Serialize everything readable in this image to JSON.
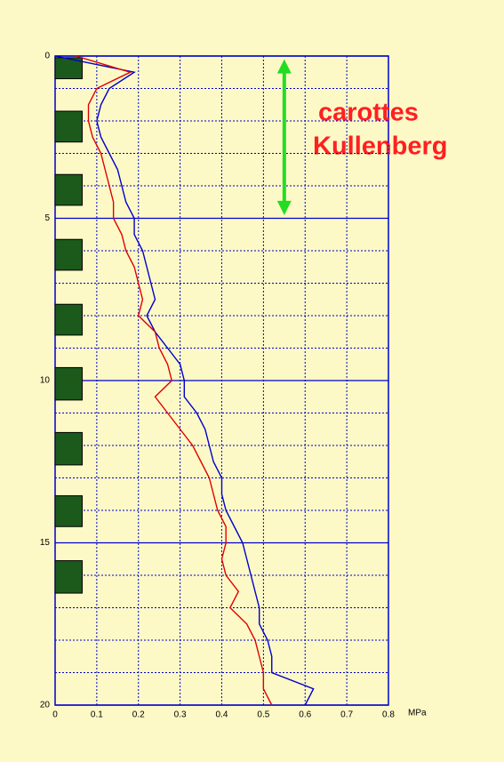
{
  "chart_data": {
    "type": "line",
    "xlim": [
      0,
      0.8
    ],
    "xticks": [
      0,
      0.1,
      0.2,
      0.3,
      0.4,
      0.5,
      0.6,
      0.7,
      0.8
    ],
    "xlabel": "MPa",
    "ylim": [
      0,
      20
    ],
    "yticks": [
      0,
      5,
      10,
      15,
      20
    ],
    "y_minor_ticks": [
      1,
      2,
      3,
      4,
      6,
      7,
      8,
      9,
      11,
      12,
      13,
      14,
      16,
      17,
      18,
      19
    ],
    "grid": true,
    "y_inverted": true,
    "depth": [
      0,
      0.5,
      1,
      1.5,
      2,
      2.5,
      3,
      3.5,
      4,
      4.5,
      5,
      5.5,
      6,
      6.5,
      7,
      7.5,
      8,
      8.5,
      9,
      9.5,
      10,
      10.5,
      11,
      11.5,
      12,
      12.5,
      13,
      13.5,
      14,
      14.5,
      15,
      15.5,
      16,
      16.5,
      17,
      17.5,
      18,
      18.5,
      19,
      19.5,
      20
    ],
    "series": [
      {
        "color": "#0000cc",
        "values": [
          0.0,
          0.19,
          0.13,
          0.11,
          0.1,
          0.11,
          0.13,
          0.15,
          0.16,
          0.17,
          0.19,
          0.19,
          0.21,
          0.22,
          0.23,
          0.24,
          0.22,
          0.24,
          0.27,
          0.3,
          0.31,
          0.31,
          0.34,
          0.36,
          0.37,
          0.38,
          0.4,
          0.4,
          0.41,
          0.43,
          0.45,
          0.46,
          0.47,
          0.48,
          0.49,
          0.49,
          0.51,
          0.52,
          0.52,
          0.62,
          0.6
        ]
      },
      {
        "color": "#e00000",
        "values": [
          0.05,
          0.18,
          0.1,
          0.08,
          0.08,
          0.09,
          0.11,
          0.12,
          0.13,
          0.14,
          0.14,
          0.16,
          0.17,
          0.19,
          0.2,
          0.21,
          0.2,
          0.24,
          0.25,
          0.27,
          0.28,
          0.24,
          0.27,
          0.3,
          0.33,
          0.35,
          0.37,
          0.38,
          0.39,
          0.41,
          0.41,
          0.4,
          0.41,
          0.44,
          0.42,
          0.46,
          0.48,
          0.49,
          0.5,
          0.5,
          0.52
        ]
      }
    ],
    "cores": {
      "color": "#1c5a1c",
      "width": 0.065,
      "intervals": [
        [
          0.05,
          0.7
        ],
        [
          1.7,
          2.65
        ],
        [
          3.65,
          4.6
        ],
        [
          5.65,
          6.6
        ],
        [
          7.65,
          8.6
        ],
        [
          9.6,
          10.6
        ],
        [
          11.6,
          12.6
        ],
        [
          13.55,
          14.5
        ],
        [
          15.55,
          16.55
        ]
      ]
    },
    "arrow": {
      "x": 0.55,
      "from": 0.1,
      "to": 4.9,
      "color": "#22dd22"
    },
    "annotation": [
      "carottes",
      "Kullenberg"
    ]
  }
}
